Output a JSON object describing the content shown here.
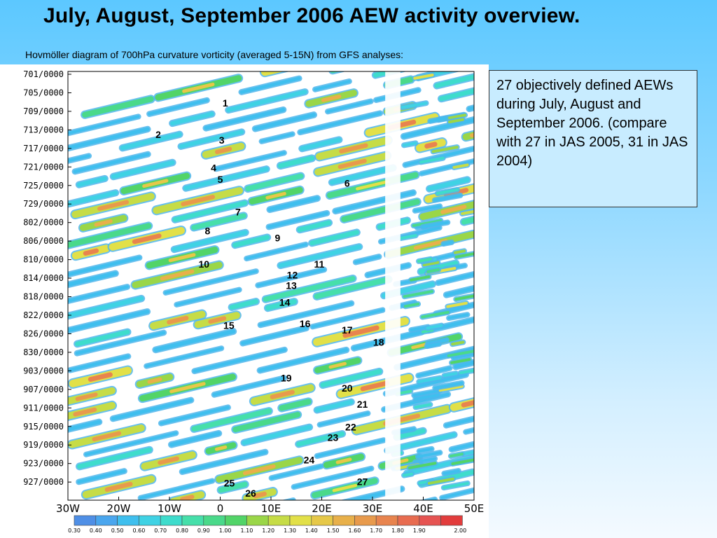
{
  "slide": {
    "title": "July, August, September 2006 AEW activity overview.",
    "caption": "Hovmöller diagram of 700hPa curvature vorticity (averaged 5-15N) from GFS analyses:"
  },
  "info_box": {
    "text": "27 objectively defined AEWs during July, August and September 2006. (compare with 27 in JAS 2005, 31 in JAS 2004)"
  },
  "chart_data": {
    "type": "heatmap",
    "title": "",
    "xlabel": "",
    "ylabel": "",
    "x_ticks": [
      "30W",
      "20W",
      "10W",
      "0",
      "10E",
      "20E",
      "30E",
      "40E",
      "50E"
    ],
    "x_values": [
      -30,
      -20,
      -10,
      0,
      10,
      20,
      30,
      40,
      50
    ],
    "xlim": [
      -30,
      50
    ],
    "y_ticks": [
      "701/0000",
      "705/0000",
      "709/0000",
      "713/0000",
      "717/0000",
      "721/0000",
      "725/0000",
      "729/0000",
      "802/0000",
      "806/0000",
      "810/0000",
      "814/0000",
      "818/0000",
      "822/0000",
      "826/0000",
      "830/0000",
      "903/0000",
      "907/0000",
      "911/0000",
      "915/0000",
      "919/0000",
      "923/0000",
      "927/0000"
    ],
    "ylim_days": [
      0,
      91
    ],
    "grid": false,
    "colorbar": {
      "labels": [
        "0.30",
        "0.40",
        "0.50",
        "0.60",
        "0.70",
        "0.80",
        "0.90",
        "1.00",
        "1.10",
        "1.20",
        "1.30",
        "1.40",
        "1.50",
        "1.60",
        "1.70",
        "1.80",
        "1.90",
        "2.00"
      ],
      "colors": [
        "#4f8fe6",
        "#4aa6ee",
        "#3fbfee",
        "#3fd2e4",
        "#3edccc",
        "#46dfaa",
        "#4ad98a",
        "#52d468",
        "#9ad648",
        "#c6dc46",
        "#e2e048",
        "#e6c848",
        "#e8b04a",
        "#e89a4c",
        "#e8844e",
        "#e86c50",
        "#e65452",
        "#e23c3c"
      ]
    },
    "waves": [
      {
        "label": "1",
        "lon": 1.0,
        "day": 6.2
      },
      {
        "label": "2",
        "lon": -12.2,
        "day": 13.0
      },
      {
        "label": "3",
        "lon": 0.3,
        "day": 14.2
      },
      {
        "label": "4",
        "lon": -1.3,
        "day": 20.2
      },
      {
        "label": "5",
        "lon": 0.0,
        "day": 22.7
      },
      {
        "label": "6",
        "lon": 25.0,
        "day": 23.5
      },
      {
        "label": "7",
        "lon": 3.5,
        "day": 29.7
      },
      {
        "label": "8",
        "lon": -2.5,
        "day": 33.8
      },
      {
        "label": "9",
        "lon": 11.3,
        "day": 35.3
      },
      {
        "label": "10",
        "lon": -3.2,
        "day": 41.0
      },
      {
        "label": "11",
        "lon": 19.5,
        "day": 41.0
      },
      {
        "label": "12",
        "lon": 14.2,
        "day": 43.3
      },
      {
        "label": "13",
        "lon": 14.0,
        "day": 45.6
      },
      {
        "label": "14",
        "lon": 12.7,
        "day": 49.2
      },
      {
        "label": "15",
        "lon": 1.7,
        "day": 54.2
      },
      {
        "label": "16",
        "lon": 16.7,
        "day": 53.8
      },
      {
        "label": "17",
        "lon": 25.0,
        "day": 55.2
      },
      {
        "label": "18",
        "lon": 31.2,
        "day": 57.8
      },
      {
        "label": "19",
        "lon": 13.0,
        "day": 65.5
      },
      {
        "label": "20",
        "lon": 25.0,
        "day": 67.7
      },
      {
        "label": "21",
        "lon": 28.0,
        "day": 71.2
      },
      {
        "label": "22",
        "lon": 25.7,
        "day": 76.1
      },
      {
        "label": "23",
        "lon": 22.2,
        "day": 78.4
      },
      {
        "label": "24",
        "lon": 17.5,
        "day": 83.2
      },
      {
        "label": "25",
        "lon": 1.8,
        "day": 88.2
      },
      {
        "label": "26",
        "lon": 6.0,
        "day": 90.4
      },
      {
        "label": "27",
        "lon": 28.0,
        "day": 87.9
      }
    ]
  }
}
